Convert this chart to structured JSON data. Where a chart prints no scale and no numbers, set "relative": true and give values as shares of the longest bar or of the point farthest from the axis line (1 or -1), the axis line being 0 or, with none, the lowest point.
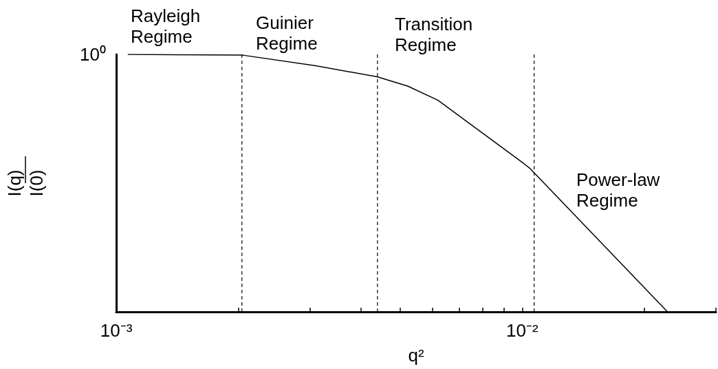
{
  "chart_data": {
    "type": "line",
    "xlabel": "q²",
    "ylabel": "I(q)\nI(0)",
    "log": "x",
    "relative": true,
    "x": [
      0.00107,
      0.00205,
      0.0031,
      0.00439,
      0.00522,
      0.0062,
      0.01007,
      0.01045,
      0.0228
    ],
    "series": [
      {
        "color": "#000000",
        "values": [
          1,
          0.997,
          0.956,
          0.913,
          0.877,
          0.822,
          0.577,
          0.557,
          0
        ]
      }
    ],
    "xlim": [
      0.001,
      0.03
    ],
    "xticks": [
      {
        "value": 0.001,
        "label": "10⁻³"
      },
      {
        "value": 0.002,
        "label": null
      },
      {
        "value": 0.003,
        "label": null
      },
      {
        "value": 0.004,
        "label": null
      },
      {
        "value": 0.005,
        "label": null
      },
      {
        "value": 0.006,
        "label": null
      },
      {
        "value": 0.007,
        "label": null
      },
      {
        "value": 0.008,
        "label": null
      },
      {
        "value": 0.009,
        "label": null
      },
      {
        "value": 0.01,
        "label": "10⁻²"
      },
      {
        "value": 0.02,
        "label": null
      },
      {
        "value": 0.03,
        "label": null
      }
    ],
    "ref_lines": [
      {
        "axis": "x",
        "value": 0.00204,
        "color": "#000000",
        "line_style": "dashed"
      },
      {
        "axis": "x",
        "value": 0.0044,
        "color": "#000000",
        "line_style": "dashed"
      },
      {
        "axis": "x",
        "value": 0.0107,
        "color": "#000000",
        "line_style": "dashed"
      }
    ],
    "annotations": [
      "Rayleigh\nRegime",
      "Guinier\nRegime",
      "Transition\nRegime",
      "Power-law\nRegime",
      "10⁰"
    ],
    "marker": "none",
    "line_style": "solid"
  }
}
